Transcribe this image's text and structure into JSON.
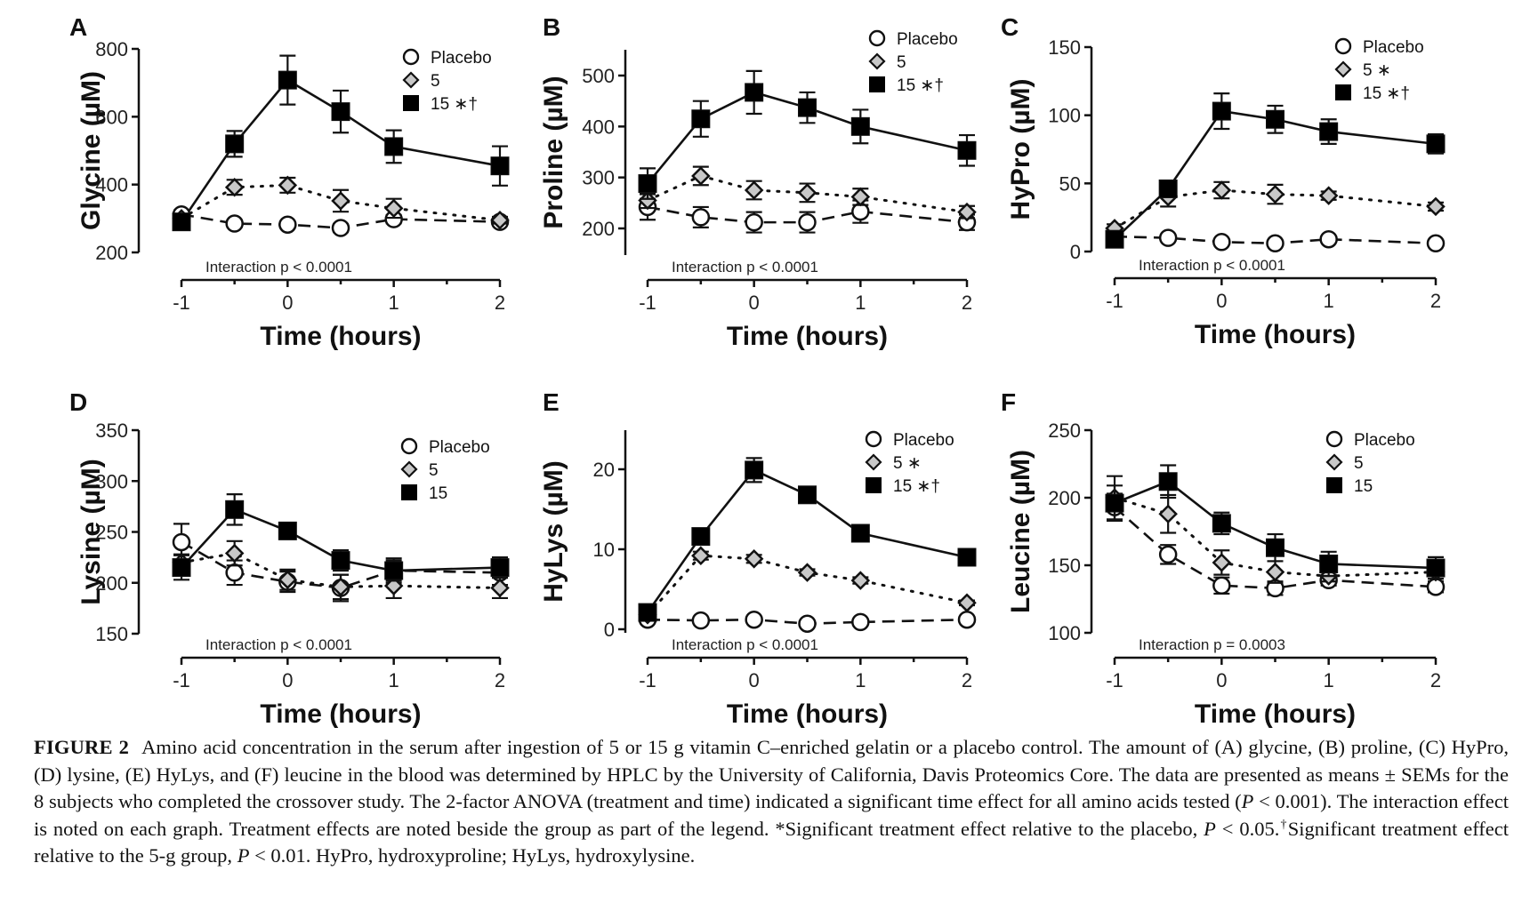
{
  "chart_data": [
    {
      "panel": "A",
      "type": "line",
      "title": "",
      "xlabel": "Time (hours)",
      "ylabel": "Glycine (µM)",
      "ylim": [
        200,
        800
      ],
      "yticks": [
        200,
        400,
        600,
        800
      ],
      "xlim": [
        -1,
        2
      ],
      "xticks": [
        -1,
        0,
        1,
        2
      ],
      "annotation": "Interaction p < 0.0001",
      "legend": [
        "Placebo",
        "5",
        "15 ∗†"
      ],
      "legend_position": "top-right",
      "x": [
        -1,
        -0.5,
        0,
        0.5,
        1,
        2
      ],
      "series": [
        {
          "name": "Placebo",
          "values": [
            312,
            285,
            282,
            272,
            298,
            290
          ],
          "errors": [
            12,
            10,
            10,
            12,
            12,
            10
          ]
        },
        {
          "name": "5",
          "values": [
            300,
            392,
            398,
            352,
            330,
            295
          ],
          "errors": [
            12,
            22,
            22,
            32,
            28,
            10
          ]
        },
        {
          "name": "15",
          "values": [
            290,
            520,
            708,
            615,
            512,
            455
          ],
          "errors": [
            18,
            38,
            72,
            62,
            48,
            58
          ]
        }
      ]
    },
    {
      "panel": "B",
      "type": "line",
      "title": "",
      "xlabel": "Time (hours)",
      "ylabel": "Proline (µM)",
      "ylim": [
        150,
        550
      ],
      "yticks": [
        200,
        300,
        400,
        500
      ],
      "xlim": [
        -1,
        2
      ],
      "xticks": [
        -1,
        0,
        1,
        2
      ],
      "annotation": "Interaction p < 0.0001",
      "legend": [
        "Placebo",
        "5",
        "15 ∗†"
      ],
      "legend_position": "top-right",
      "x": [
        -1,
        -0.5,
        0,
        0.5,
        1,
        2
      ],
      "series": [
        {
          "name": "Placebo",
          "values": [
            242,
            222,
            212,
            212,
            233,
            212
          ],
          "errors": [
            25,
            20,
            20,
            20,
            22,
            15
          ]
        },
        {
          "name": "5",
          "values": [
            255,
            303,
            275,
            270,
            262,
            232
          ],
          "errors": [
            15,
            18,
            18,
            18,
            16,
            12
          ]
        },
        {
          "name": "15",
          "values": [
            288,
            415,
            467,
            437,
            400,
            353
          ],
          "errors": [
            30,
            35,
            42,
            30,
            33,
            30
          ]
        }
      ]
    },
    {
      "panel": "C",
      "type": "line",
      "title": "",
      "xlabel": "Time (hours)",
      "ylabel": "HyPro (µM)",
      "ylim": [
        0,
        150
      ],
      "yticks": [
        0,
        50,
        100,
        150
      ],
      "xlim": [
        -1,
        2
      ],
      "xticks": [
        -1,
        0,
        1,
        2
      ],
      "annotation": "Interaction p < 0.0001",
      "legend": [
        "Placebo",
        "5  ∗",
        "15  ∗†"
      ],
      "legend_position": "top-right",
      "x": [
        -1,
        -0.5,
        0,
        0.5,
        1,
        2
      ],
      "series": [
        {
          "name": "Placebo",
          "values": [
            11,
            10,
            7,
            6,
            9,
            6
          ],
          "errors": [
            2,
            2,
            2,
            2,
            2,
            2
          ]
        },
        {
          "name": "5",
          "values": [
            17,
            40,
            45,
            42,
            41,
            33
          ],
          "errors": [
            3,
            7,
            6,
            7,
            3,
            3
          ]
        },
        {
          "name": "15",
          "values": [
            9,
            46,
            103,
            97,
            88,
            79
          ],
          "errors": [
            3,
            4,
            13,
            10,
            9,
            7
          ]
        }
      ]
    },
    {
      "panel": "D",
      "type": "line",
      "title": "",
      "xlabel": "Time (hours)",
      "ylabel": "Lysine (µM)",
      "ylim": [
        150,
        350
      ],
      "yticks": [
        150,
        200,
        250,
        300,
        350
      ],
      "xlim": [
        -1,
        2
      ],
      "xticks": [
        -1,
        0,
        1,
        2
      ],
      "annotation": "Interaction p < 0.0001",
      "legend": [
        "Placebo",
        "5",
        "15"
      ],
      "legend_position": "top-right",
      "x": [
        -1,
        -0.5,
        0,
        0.5,
        1,
        2
      ],
      "series": [
        {
          "name": "Placebo",
          "values": [
            240,
            210,
            201,
            195,
            212,
            210
          ],
          "errors": [
            18,
            12,
            10,
            13,
            12,
            12
          ]
        },
        {
          "name": "5",
          "values": [
            220,
            229,
            203,
            196,
            197,
            195
          ],
          "errors": [
            8,
            12,
            10,
            12,
            12,
            10
          ]
        },
        {
          "name": "15",
          "values": [
            215,
            272,
            251,
            222,
            212,
            215
          ],
          "errors": [
            12,
            15,
            8,
            10,
            10,
            10
          ]
        }
      ]
    },
    {
      "panel": "E",
      "type": "line",
      "title": "",
      "xlabel": "Time (hours)",
      "ylabel": "HyLys (µM)",
      "ylim": [
        0,
        25
      ],
      "yticks": [
        0,
        10,
        20
      ],
      "xlim": [
        -1,
        2
      ],
      "xticks": [
        -1,
        0,
        1,
        2
      ],
      "annotation": "Interaction p < 0.0001",
      "legend": [
        "Placebo",
        "5  ∗",
        "15 ∗†"
      ],
      "legend_position": "top-right",
      "x": [
        -1,
        -0.5,
        0,
        0.5,
        1,
        2
      ],
      "series": [
        {
          "name": "Placebo",
          "values": [
            1.2,
            1.1,
            1.2,
            0.7,
            0.9,
            1.2
          ],
          "errors": [
            0.2,
            0.2,
            0.2,
            0.2,
            0.2,
            0.2
          ]
        },
        {
          "name": "5",
          "values": [
            1.8,
            9.2,
            8.8,
            7.1,
            6.1,
            3.3
          ],
          "errors": [
            0.3,
            0.5,
            0.5,
            0.4,
            0.4,
            0.3
          ]
        },
        {
          "name": "15",
          "values": [
            2.1,
            11.6,
            19.9,
            16.8,
            12.0,
            9.0
          ],
          "errors": [
            0.3,
            0.6,
            1.5,
            0.6,
            0.5,
            0.5
          ]
        }
      ]
    },
    {
      "panel": "F",
      "type": "line",
      "title": "",
      "xlabel": "Time (hours)",
      "ylabel": "Leucine (µM)",
      "ylim": [
        100,
        250
      ],
      "yticks": [
        100,
        150,
        200,
        250
      ],
      "xlim": [
        -1,
        2
      ],
      "xticks": [
        -1,
        0,
        1,
        2
      ],
      "annotation": "Interaction p = 0.0003",
      "legend": [
        "Placebo",
        "5",
        "15"
      ],
      "legend_position": "top-right",
      "x": [
        -1,
        -0.5,
        0,
        0.5,
        1,
        2
      ],
      "series": [
        {
          "name": "Placebo",
          "values": [
            193,
            158,
            135,
            133,
            139,
            134
          ],
          "errors": [
            10,
            7,
            6,
            5,
            4,
            4
          ]
        },
        {
          "name": "5",
          "values": [
            200,
            188,
            152,
            145,
            142,
            145
          ],
          "errors": [
            16,
            14,
            9,
            8,
            4,
            5
          ]
        },
        {
          "name": "15",
          "values": [
            196,
            212,
            181,
            163,
            151,
            148
          ],
          "errors": [
            13,
            12,
            8,
            10,
            9,
            8
          ]
        }
      ]
    }
  ],
  "caption": {
    "label": "FIGURE 2",
    "part1": "Amino acid concentration in the serum after ingestion of 5 or 15 g vitamin C–enriched gelatin or a placebo control. The amount of (A) glycine, (B) proline, (C) HyPro, (D) lysine, (E) HyLys, and (F) leucine in the blood was determined by HPLC by the University of California, Davis Proteomics Core. The data are presented as means ± SEMs for the 8 subjects who completed the crossover study. The 2-factor ANOVA (treatment and time) indicated a significant time effect for all amino acids tested (",
    "p1": "P",
    "part2": " < 0.001). The interaction effect is noted on each graph. Treatment effects are noted beside the group as part of the legend. *Significant treatment effect relative to the placebo, ",
    "p2": "P",
    "part3": " < 0.05.",
    "dagger": "†",
    "part4": "Significant treatment effect relative to the 5-g group, ",
    "p3": "P",
    "part5": " < 0.01. HyPro, hydroxyproline; HyLys, hydroxylysine."
  }
}
